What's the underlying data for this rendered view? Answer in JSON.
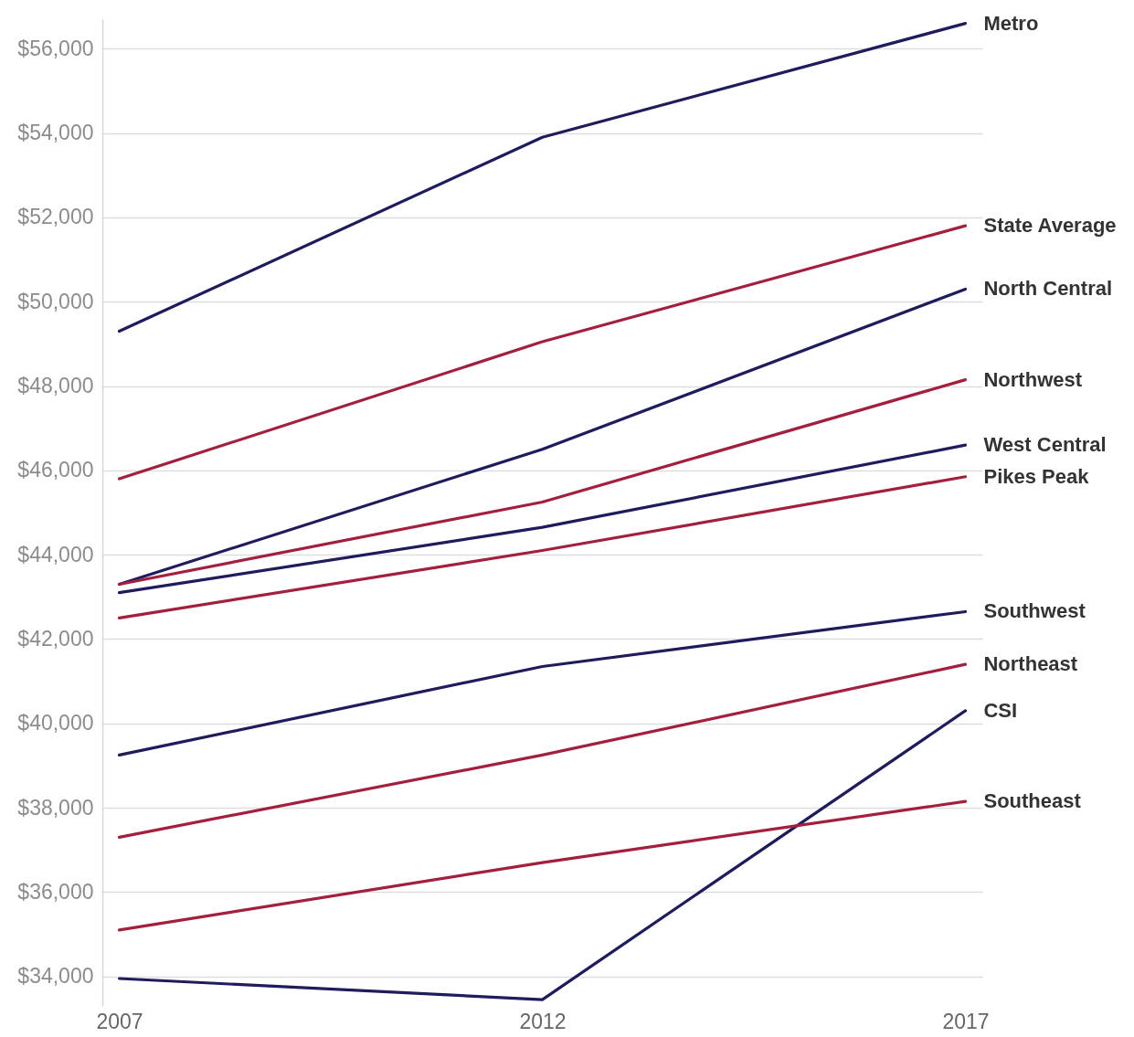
{
  "chart_data": {
    "type": "line",
    "x": [
      2007,
      2012,
      2017
    ],
    "xlim": [
      2006.8,
      2017.2
    ],
    "xticks": [
      2007,
      2012,
      2017
    ],
    "ylim": [
      33300,
      56700
    ],
    "yticks": [
      {
        "value": 34000,
        "label": "$34,000"
      },
      {
        "value": 36000,
        "label": "$36,000"
      },
      {
        "value": 38000,
        "label": "$38,000"
      },
      {
        "value": 40000,
        "label": "$40,000"
      },
      {
        "value": 42000,
        "label": "$42,000"
      },
      {
        "value": 44000,
        "label": "$44,000"
      },
      {
        "value": 46000,
        "label": "$46,000"
      },
      {
        "value": 48000,
        "label": "$48,000"
      },
      {
        "value": 50000,
        "label": "$50,000"
      },
      {
        "value": 52000,
        "label": "$52,000"
      },
      {
        "value": 54000,
        "label": "$54,000"
      },
      {
        "value": 56000,
        "label": "$56,000"
      }
    ],
    "grid": "y",
    "line_style": "solid",
    "series": [
      {
        "name": "Metro",
        "color": "#1e1c5c",
        "values": [
          49300,
          53900,
          56600
        ]
      },
      {
        "name": "State Average",
        "color": "#a2203d",
        "values": [
          45800,
          49050,
          51800
        ]
      },
      {
        "name": "North Central",
        "color": "#1e1c5c",
        "values": [
          43300,
          46500,
          50300
        ]
      },
      {
        "name": "Northwest",
        "color": "#a2203d",
        "values": [
          43300,
          45250,
          48150
        ]
      },
      {
        "name": "West Central",
        "color": "#1e1c5c",
        "values": [
          43100,
          44650,
          46600
        ]
      },
      {
        "name": "Pikes Peak",
        "color": "#a2203d",
        "values": [
          42500,
          44100,
          45850
        ]
      },
      {
        "name": "Southwest",
        "color": "#1e1c5c",
        "values": [
          39250,
          41350,
          42650
        ]
      },
      {
        "name": "Northeast",
        "color": "#a2203d",
        "values": [
          37300,
          39250,
          41400
        ]
      },
      {
        "name": "CSI",
        "color": "#1e1c5c",
        "values": [
          33950,
          33450,
          40300
        ]
      },
      {
        "name": "Southeast",
        "color": "#a2203d",
        "values": [
          35100,
          36700,
          38150
        ]
      }
    ]
  }
}
